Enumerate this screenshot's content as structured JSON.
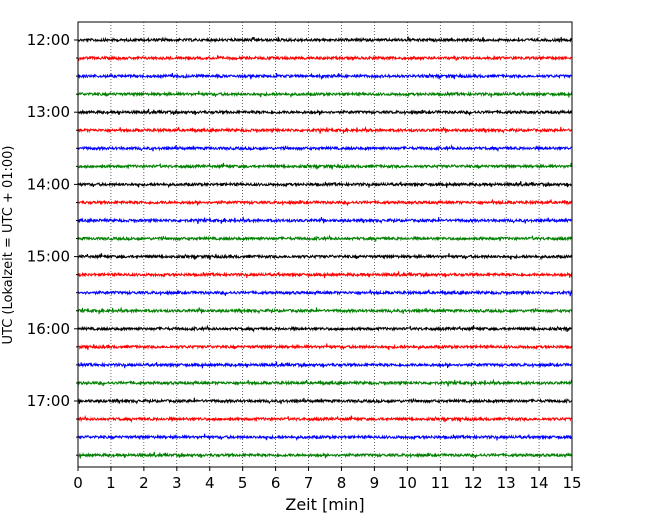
{
  "chart_data": {
    "type": "line",
    "title": "",
    "xlabel": "Zeit  [min]",
    "ylabel": "UTC (Lokalzeit = UTC + 01:00)",
    "xlim": [
      0,
      15
    ],
    "x_ticks": [
      "0",
      "1",
      "2",
      "3",
      "4",
      "5",
      "6",
      "7",
      "8",
      "9",
      "10",
      "11",
      "12",
      "13",
      "14",
      "15"
    ],
    "y_tick_labels": [
      "12:00",
      "13:00",
      "14:00",
      "15:00",
      "16:00",
      "17:00"
    ],
    "grid": "vertical dotted",
    "trace_interval": "15 min",
    "trace_start": "12:00",
    "trace_count": 24,
    "trace_colors": [
      "#000000",
      "#ff0000",
      "#0000ff",
      "#008000"
    ]
  }
}
